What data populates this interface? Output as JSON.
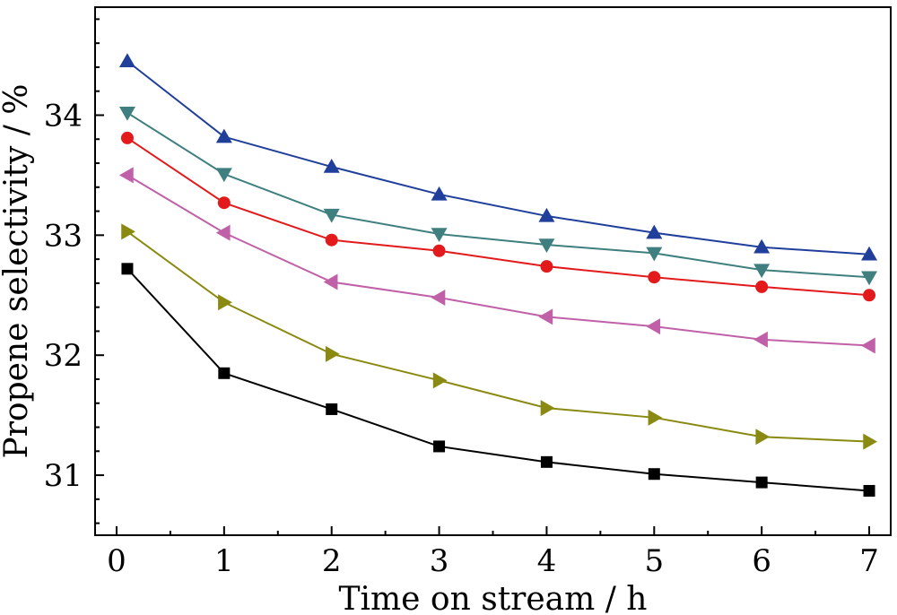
{
  "chart_data": {
    "type": "line",
    "xlabel": "Time on stream / h",
    "ylabel": "Propene selectivity / %",
    "xlim": [
      -0.2,
      7.2
    ],
    "ylim": [
      30.5,
      34.9
    ],
    "xticks": [
      0,
      1,
      2,
      3,
      4,
      5,
      6,
      7
    ],
    "xtick_labels": [
      "0",
      "1",
      "2",
      "3",
      "4",
      "5",
      "6",
      "7"
    ],
    "yticks": [
      31,
      32,
      33,
      34
    ],
    "ytick_labels": [
      "31",
      "32",
      "33",
      "34"
    ],
    "x": [
      0.1,
      1,
      2,
      3,
      4,
      5,
      6,
      7
    ],
    "grid": false,
    "legend": "none",
    "series": [
      {
        "marker": "triangle-up",
        "color": "#1f3f9b",
        "values": [
          34.45,
          33.82,
          33.57,
          33.34,
          33.16,
          33.02,
          32.9,
          32.84
        ]
      },
      {
        "marker": "triangle-down",
        "color": "#3f7f7f",
        "values": [
          34.02,
          33.51,
          33.17,
          33.01,
          32.92,
          32.85,
          32.71,
          32.65
        ]
      },
      {
        "marker": "circle",
        "color": "#e31a1c",
        "values": [
          33.81,
          33.27,
          32.96,
          32.87,
          32.74,
          32.65,
          32.57,
          32.5
        ]
      },
      {
        "marker": "triangle-left",
        "color": "#c060a8",
        "values": [
          33.5,
          33.02,
          32.61,
          32.48,
          32.32,
          32.24,
          32.13,
          32.08
        ]
      },
      {
        "marker": "triangle-right",
        "color": "#8a8a12",
        "values": [
          33.03,
          32.44,
          32.01,
          31.79,
          31.56,
          31.48,
          31.32,
          31.28
        ]
      },
      {
        "marker": "square",
        "color": "#000000",
        "values": [
          32.72,
          31.85,
          31.55,
          31.24,
          31.11,
          31.01,
          30.94,
          30.87
        ]
      }
    ]
  }
}
